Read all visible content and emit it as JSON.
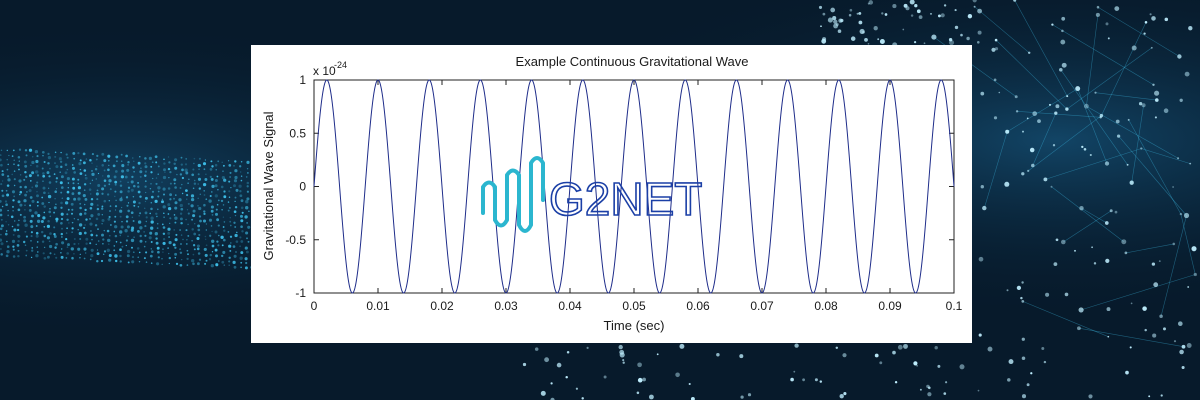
{
  "banner": {
    "logo_text": "G2NET"
  },
  "colors": {
    "background": "#071a2b",
    "glow": "#3fc3ee",
    "wave_line": "#1f2d8a",
    "logo_teal": "#2bb6cf",
    "logo_blue": "#1b3fa6"
  },
  "chart_data": {
    "type": "line",
    "title": "Example Continuous Gravitational Wave",
    "xlabel": "Time (sec)",
    "ylabel": "Gravitational Wave Signal",
    "y_multiplier": "x 10",
    "y_exponent": "-24",
    "xlim": [
      0,
      0.1
    ],
    "ylim": [
      -1,
      1
    ],
    "x_ticks": [
      0,
      0.01,
      0.02,
      0.03,
      0.04,
      0.05,
      0.06,
      0.07,
      0.08,
      0.09,
      0.1
    ],
    "x_tick_labels": [
      "0",
      "0.01",
      "0.02",
      "0.03",
      "0.04",
      "0.05",
      "0.06",
      "0.07",
      "0.08",
      "0.09",
      "0.1"
    ],
    "y_ticks": [
      -1,
      -0.5,
      0,
      0.5,
      1
    ],
    "y_tick_labels": [
      "-1",
      "-0.5",
      "0",
      "0.5",
      "1"
    ],
    "grid": false,
    "series": [
      {
        "function": "sin",
        "amplitude": 1,
        "frequency_hz": 125,
        "phase": 0,
        "color": "#1f2d8a"
      }
    ]
  }
}
